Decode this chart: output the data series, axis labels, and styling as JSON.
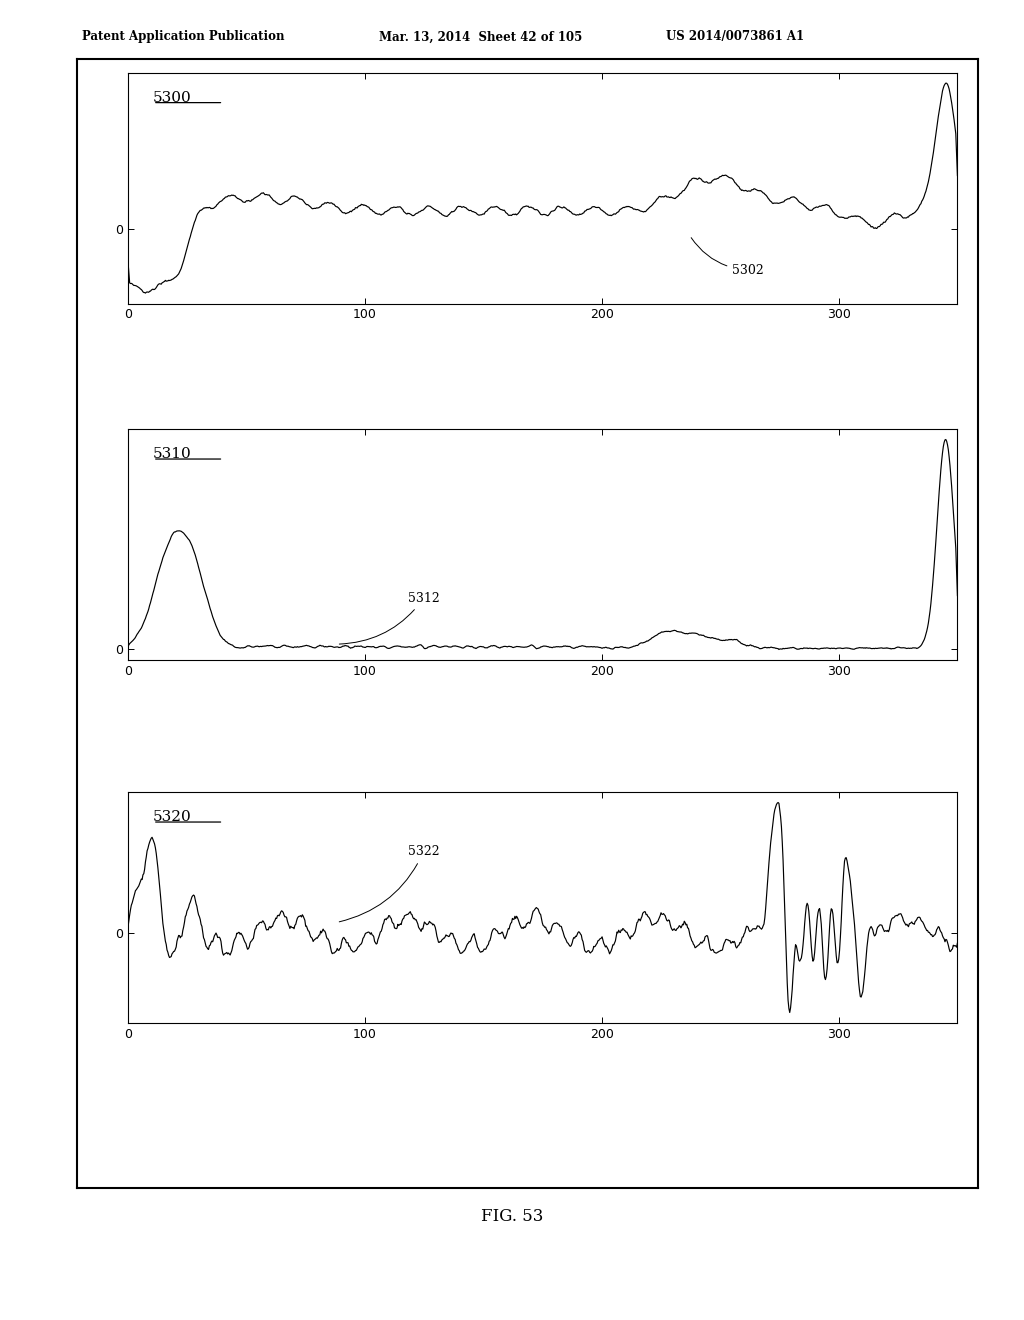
{
  "header_left": "Patent Application Publication",
  "header_mid": "Mar. 13, 2014  Sheet 42 of 105",
  "header_right": "US 2014/0073861 A1",
  "caption": "FIG. 53",
  "label1": "5300",
  "label2": "5310",
  "label3": "5320",
  "annot1": "5302",
  "annot2": "5312",
  "annot3": "5322",
  "bg_color": "#ffffff",
  "line_color": "#000000",
  "fig_width": 10.24,
  "fig_height": 13.2,
  "xmax": 350,
  "xticks": [
    0,
    100,
    200,
    300
  ]
}
